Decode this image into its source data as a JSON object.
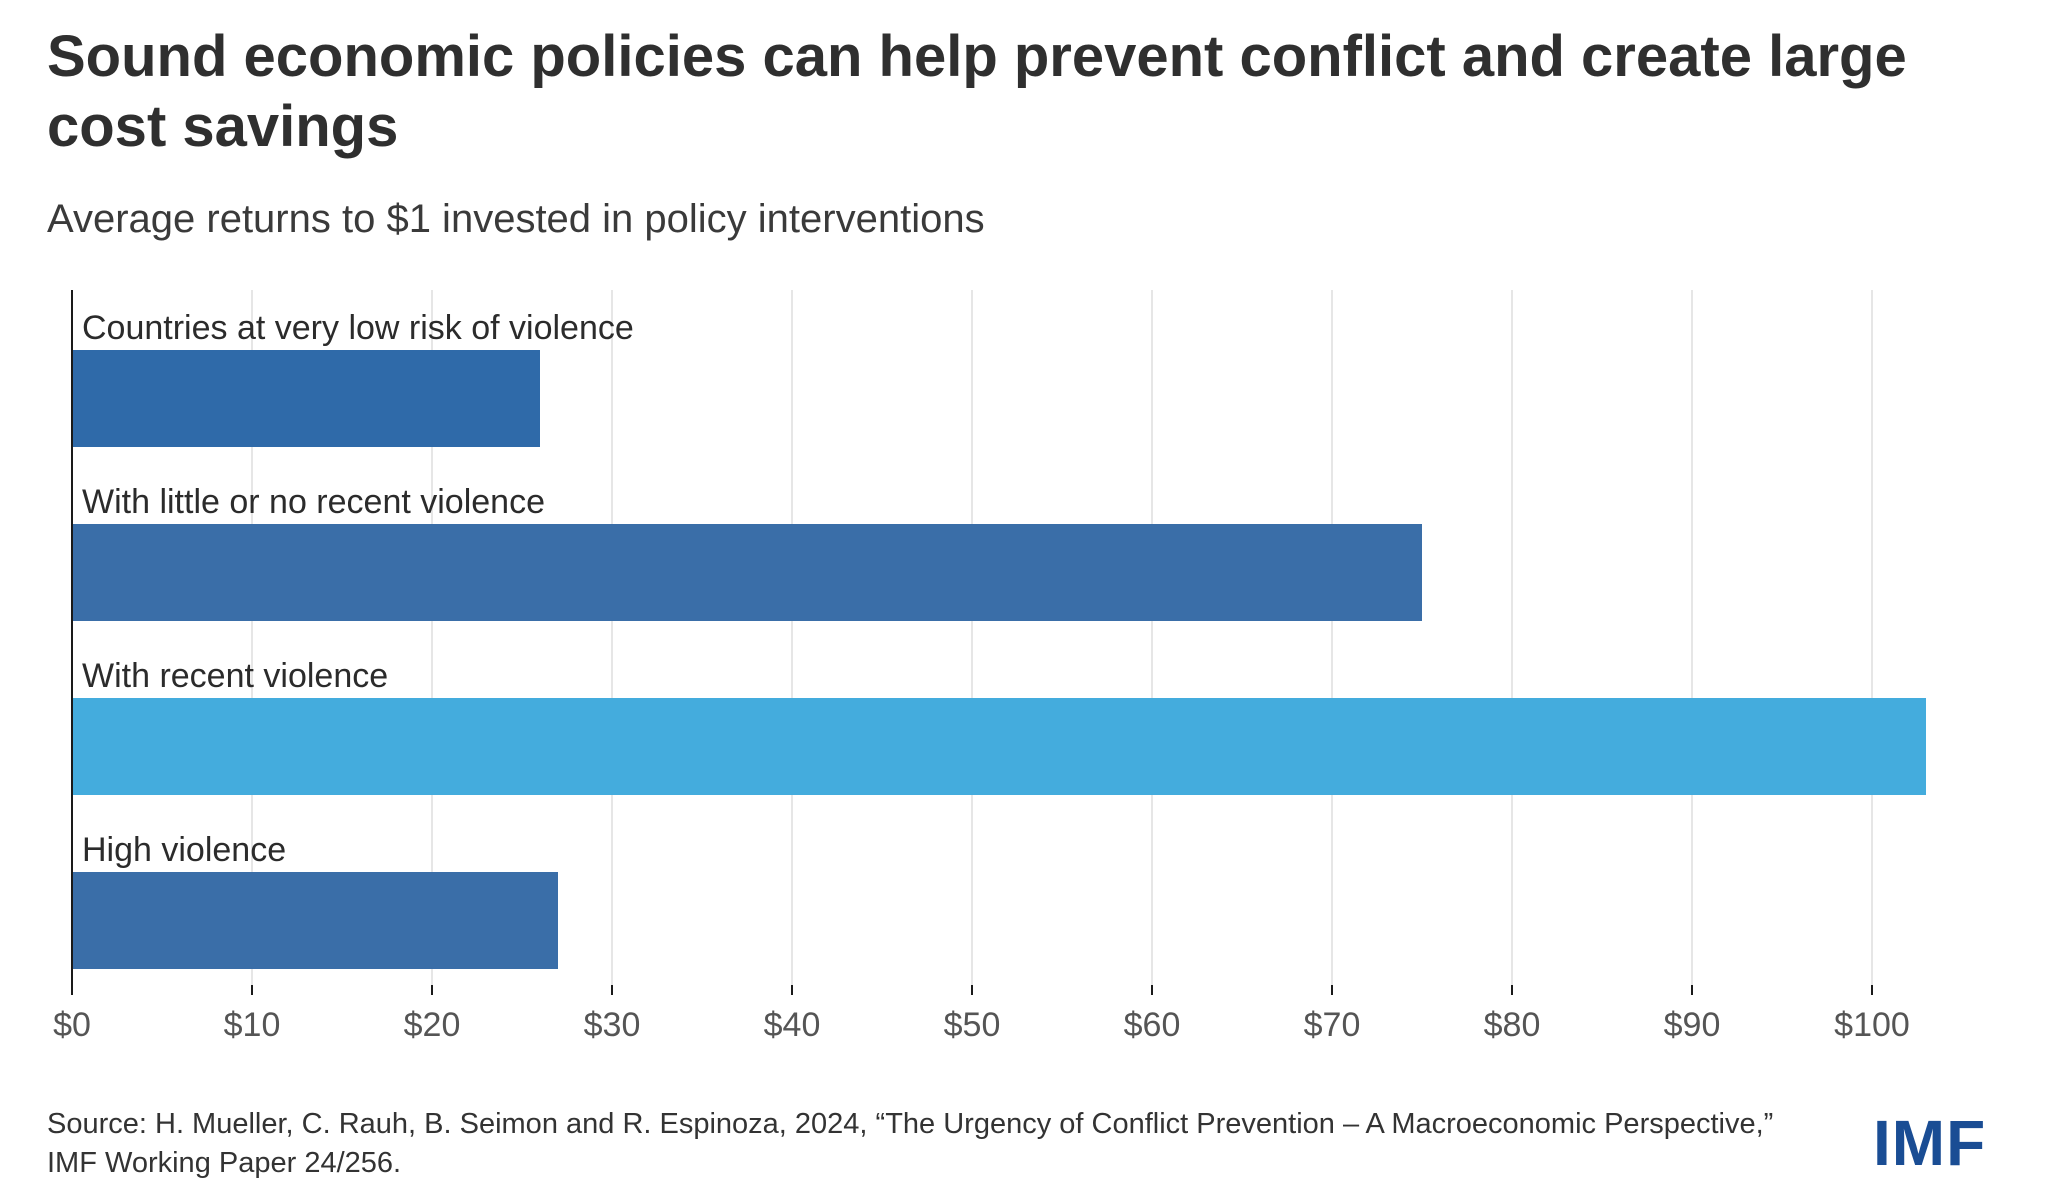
{
  "header": {
    "title": "Sound economic policies can help prevent conflict and create large cost savings",
    "subtitle": "Average returns to $1 invested in policy interventions"
  },
  "chart_data": {
    "type": "bar",
    "orientation": "horizontal",
    "categories": [
      "Countries at very low risk of violence",
      "With little or no recent violence",
      "With recent violence",
      "High violence"
    ],
    "values": [
      26,
      75,
      103,
      27
    ],
    "highlight_index": 2,
    "xlim": [
      0,
      105
    ],
    "x_ticks": [
      0,
      10,
      20,
      30,
      40,
      50,
      60,
      70,
      80,
      90,
      100
    ],
    "x_tick_labels": [
      "$0",
      "$10",
      "$20",
      "$30",
      "$40",
      "$50",
      "$60",
      "$70",
      "$80",
      "$90",
      "$100"
    ],
    "grid": true,
    "xlabel": "",
    "ylabel": ""
  },
  "colors": {
    "bar": "#3a6ea8",
    "bar_first": "#2f6aa9",
    "highlight": "#44acdd",
    "grid": "#e6e6e6",
    "axis": "#1a1a1a",
    "tick_text": "#555555",
    "brand": "#1a4d94"
  },
  "footer": {
    "source": "Source: H. Mueller, C. Rauh, B. Seimon and R. Espinoza, 2024, “The Urgency of Conflict Prevention – A Macroeconomic Perspective,” IMF Working Paper 24/256.",
    "logo_text": "IMF"
  }
}
